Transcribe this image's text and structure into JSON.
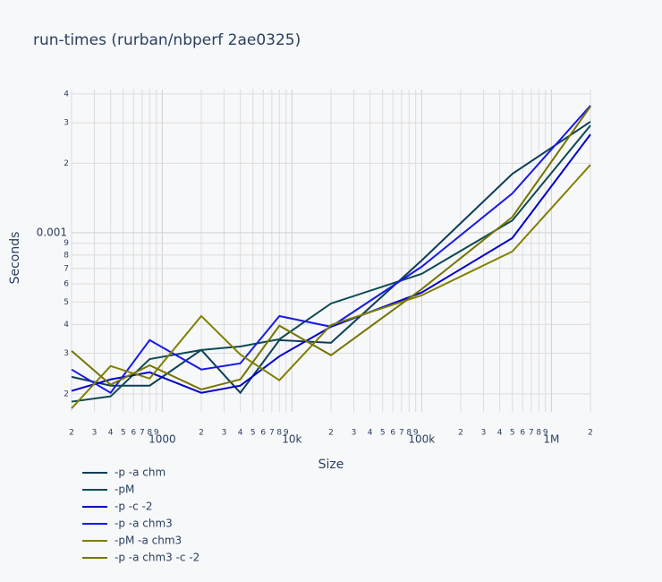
{
  "chart_data": {
    "type": "line",
    "title": "run-times (rurban/nbperf 2ae0325)",
    "xlabel": "Size",
    "ylabel": "Seconds",
    "xscale": "log",
    "yscale": "log",
    "grid": true,
    "legend": "bottom-left",
    "x": [
      200,
      400,
      800,
      2000,
      4000,
      8000,
      20000,
      100000,
      500000,
      2000000
    ],
    "series": [
      {
        "name": "-p -a chm",
        "color": "#0d3f55",
        "values": [
          0.000237,
          0.000217,
          0.000217,
          0.00031,
          0.000202,
          0.000342,
          0.000333,
          0.000758,
          0.0018,
          0.00303
        ]
      },
      {
        "name": "-pM",
        "color": "#0e4a52",
        "values": [
          0.000185,
          0.000195,
          0.000283,
          0.00031,
          0.000321,
          0.000345,
          0.000493,
          0.000663,
          0.00113,
          0.00292
        ]
      },
      {
        "name": "-p -c -2",
        "color": "#0000c8",
        "values": [
          0.000206,
          0.000231,
          0.000248,
          0.000202,
          0.000217,
          0.000291,
          0.000391,
          0.00055,
          0.000948,
          0.00267
        ]
      },
      {
        "name": "-p -a chm3",
        "color": "#1a1ae6",
        "values": [
          0.000255,
          0.000202,
          0.000342,
          0.000255,
          0.000271,
          0.000435,
          0.000391,
          0.000712,
          0.00148,
          0.00356
        ]
      },
      {
        "name": "-pM -a chm3",
        "color": "#808000",
        "values": [
          0.000173,
          0.000264,
          0.000233,
          0.000435,
          0.000296,
          0.000229,
          0.000398,
          0.000535,
          0.000829,
          0.00197
        ]
      },
      {
        "name": "-p -a chm3 -c -2",
        "color": "#757500",
        "values": [
          0.000307,
          0.000219,
          0.000266,
          0.000209,
          0.000231,
          0.000395,
          0.000294,
          0.000569,
          0.00117,
          0.00353
        ]
      }
    ],
    "xlim": [
      200,
      2000000
    ],
    "ylim": [
      0.000167,
      0.00418
    ],
    "xticks": [
      {
        "value": 200,
        "label": "2"
      },
      {
        "value": 300,
        "label": "3"
      },
      {
        "value": 400,
        "label": "4"
      },
      {
        "value": 500,
        "label": "5"
      },
      {
        "value": 600,
        "label": "6"
      },
      {
        "value": 700,
        "label": "7"
      },
      {
        "value": 800,
        "label": "8"
      },
      {
        "value": 900,
        "label": "9"
      },
      1000,
      {
        "value": 2000,
        "label": "2"
      },
      {
        "value": 3000,
        "label": "3"
      },
      {
        "value": 4000,
        "label": "4"
      },
      {
        "value": 5000,
        "label": "5"
      },
      {
        "value": 6000,
        "label": "6"
      },
      {
        "value": 7000,
        "label": "7"
      },
      {
        "value": 8000,
        "label": "8"
      },
      {
        "value": 9000,
        "label": "9"
      },
      {
        "value": 10000,
        "label": "10k"
      },
      {
        "value": 20000,
        "label": "2"
      },
      {
        "value": 30000,
        "label": "3"
      },
      {
        "value": 40000,
        "label": "4"
      },
      {
        "value": 50000,
        "label": "5"
      },
      {
        "value": 60000,
        "label": "6"
      },
      {
        "value": 70000,
        "label": "7"
      },
      {
        "value": 80000,
        "label": "8"
      },
      {
        "value": 90000,
        "label": "9"
      },
      {
        "value": 100000,
        "label": "100k"
      },
      {
        "value": 200000,
        "label": "2"
      },
      {
        "value": 300000,
        "label": "3"
      },
      {
        "value": 400000,
        "label": "4"
      },
      {
        "value": 500000,
        "label": "5"
      },
      {
        "value": 600000,
        "label": "6"
      },
      {
        "value": 700000,
        "label": "7"
      },
      {
        "value": 800000,
        "label": "8"
      },
      {
        "value": 900000,
        "label": "9"
      },
      {
        "value": 1000000,
        "label": "1M"
      },
      {
        "value": 2000000,
        "label": "2"
      }
    ],
    "yticks": [
      {
        "value": 0.0002,
        "label": "2"
      },
      {
        "value": 0.0003,
        "label": "3"
      },
      {
        "value": 0.0004,
        "label": "4"
      },
      {
        "value": 0.0005,
        "label": "5"
      },
      {
        "value": 0.0006,
        "label": "6"
      },
      {
        "value": 0.0007,
        "label": "7"
      },
      {
        "value": 0.0008,
        "label": "8"
      },
      {
        "value": 0.0009,
        "label": "9"
      },
      0.001,
      {
        "value": 0.002,
        "label": "2"
      },
      {
        "value": 0.003,
        "label": "3"
      },
      {
        "value": 0.004,
        "label": "4"
      }
    ]
  }
}
